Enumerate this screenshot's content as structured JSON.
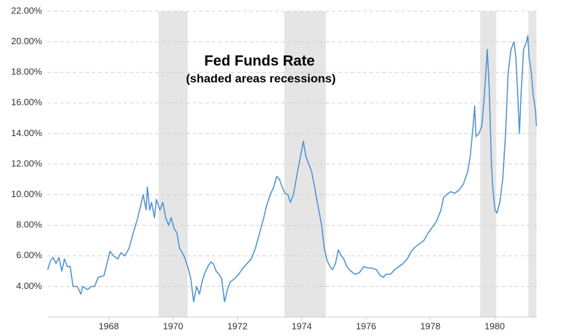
{
  "chart_data": {
    "type": "line",
    "title": "Fed Funds Rate",
    "subtitle": "(shaded areas recessions)",
    "color": "#4f93cf",
    "shade_color": "#e5e5e5",
    "grid": true,
    "xlim": [
      1966.1,
      1981.3
    ],
    "ylim": [
      2,
      22
    ],
    "xticks": [
      1968,
      1970,
      1972,
      1974,
      1976,
      1978,
      1980
    ],
    "yticks": [
      {
        "value": 4,
        "label": "4.00%"
      },
      {
        "value": 6,
        "label": "6.00%"
      },
      {
        "value": 8,
        "label": "8.00%"
      },
      {
        "value": 10,
        "label": "10.00%"
      },
      {
        "value": 12,
        "label": "12.00%"
      },
      {
        "value": 14,
        "label": "14.00%"
      },
      {
        "value": 16,
        "label": "16.00%"
      },
      {
        "value": 18,
        "label": "18.00%"
      },
      {
        "value": 20,
        "label": "20.00%"
      },
      {
        "value": 22,
        "label": "22.00%"
      }
    ],
    "recessions": [
      [
        1969.55,
        1970.45
      ],
      [
        1973.46,
        1974.75
      ],
      [
        1979.55,
        1980.05
      ],
      [
        1981.05,
        1981.3
      ]
    ],
    "x": [
      1966.1,
      1966.19,
      1966.27,
      1966.36,
      1966.45,
      1966.54,
      1966.62,
      1966.71,
      1966.8,
      1966.89,
      1967.02,
      1967.13,
      1967.19,
      1967.34,
      1967.45,
      1967.56,
      1967.67,
      1967.85,
      1967.93,
      1968.04,
      1968.15,
      1968.28,
      1968.37,
      1968.5,
      1968.63,
      1968.76,
      1968.89,
      1968.98,
      1969.07,
      1969.16,
      1969.2,
      1969.27,
      1969.33,
      1969.42,
      1969.48,
      1969.59,
      1969.68,
      1969.77,
      1969.86,
      1969.94,
      1970.03,
      1970.12,
      1970.2,
      1970.34,
      1970.47,
      1970.55,
      1970.64,
      1970.73,
      1970.82,
      1970.9,
      1970.99,
      1971.08,
      1971.17,
      1971.25,
      1971.34,
      1971.43,
      1971.51,
      1971.6,
      1971.69,
      1971.78,
      1971.91,
      1972.04,
      1972.17,
      1972.3,
      1972.43,
      1972.56,
      1972.69,
      1972.82,
      1972.91,
      1973.02,
      1973.13,
      1973.22,
      1973.31,
      1973.39,
      1973.48,
      1973.57,
      1973.65,
      1973.74,
      1973.87,
      1973.96,
      1974.05,
      1974.13,
      1974.22,
      1974.31,
      1974.4,
      1974.53,
      1974.62,
      1974.7,
      1974.79,
      1974.88,
      1974.96,
      1975.05,
      1975.14,
      1975.23,
      1975.31,
      1975.4,
      1975.53,
      1975.66,
      1975.79,
      1975.93,
      1976.06,
      1976.19,
      1976.32,
      1976.45,
      1976.54,
      1976.62,
      1976.76,
      1976.89,
      1977.02,
      1977.15,
      1977.28,
      1977.41,
      1977.54,
      1977.67,
      1977.8,
      1977.93,
      1978.07,
      1978.2,
      1978.33,
      1978.41,
      1978.5,
      1978.63,
      1978.76,
      1978.89,
      1979.03,
      1979.16,
      1979.24,
      1979.33,
      1979.38,
      1979.42,
      1979.51,
      1979.6,
      1979.68,
      1979.77,
      1979.83,
      1979.9,
      1979.94,
      1980.01,
      1980.07,
      1980.16,
      1980.25,
      1980.34,
      1980.42,
      1980.51,
      1980.6,
      1980.66,
      1980.73,
      1980.77,
      1980.82,
      1980.9,
      1980.99,
      1981.03,
      1981.07,
      1981.14,
      1981.2,
      1981.27,
      1981.3
    ],
    "values": [
      5.1,
      5.7,
      5.9,
      5.5,
      5.9,
      5.0,
      5.8,
      5.3,
      5.3,
      4.0,
      4.0,
      3.5,
      4.0,
      3.8,
      4.0,
      4.0,
      4.6,
      4.7,
      5.4,
      6.3,
      6.0,
      5.8,
      6.2,
      6.0,
      6.5,
      7.5,
      8.4,
      9.2,
      10.0,
      9.0,
      10.5,
      9.0,
      9.5,
      8.5,
      9.7,
      9.0,
      9.5,
      8.5,
      8.0,
      8.5,
      7.8,
      7.5,
      6.5,
      6.0,
      5.2,
      4.5,
      3.0,
      4.0,
      3.5,
      4.3,
      4.9,
      5.3,
      5.6,
      5.5,
      5.0,
      4.8,
      4.5,
      3.0,
      3.8,
      4.3,
      4.5,
      4.8,
      5.2,
      5.5,
      5.8,
      6.5,
      7.5,
      8.5,
      9.3,
      10.0,
      10.5,
      11.2,
      11.0,
      10.5,
      10.1,
      10.0,
      9.5,
      10.0,
      11.5,
      12.5,
      13.5,
      12.5,
      12.0,
      11.5,
      10.5,
      9.0,
      8.0,
      6.5,
      5.7,
      5.3,
      5.1,
      5.5,
      6.4,
      6.0,
      5.8,
      5.3,
      5.0,
      4.8,
      4.9,
      5.3,
      5.2,
      5.2,
      5.1,
      4.7,
      4.6,
      4.8,
      4.8,
      5.1,
      5.3,
      5.5,
      5.8,
      6.3,
      6.6,
      6.8,
      7.0,
      7.5,
      7.9,
      8.3,
      9.0,
      9.8,
      10.0,
      10.2,
      10.1,
      10.3,
      10.7,
      11.5,
      12.5,
      14.5,
      15.8,
      13.8,
      14.0,
      14.5,
      16.5,
      19.5,
      17.0,
      12.0,
      10.5,
      9.0,
      8.8,
      9.5,
      11.0,
      14.0,
      18.0,
      19.5,
      20.0,
      19.0,
      16.0,
      14.0,
      16.5,
      19.5,
      20.0,
      20.4,
      19.0,
      18.0,
      16.5,
      15.5,
      14.5
    ]
  }
}
